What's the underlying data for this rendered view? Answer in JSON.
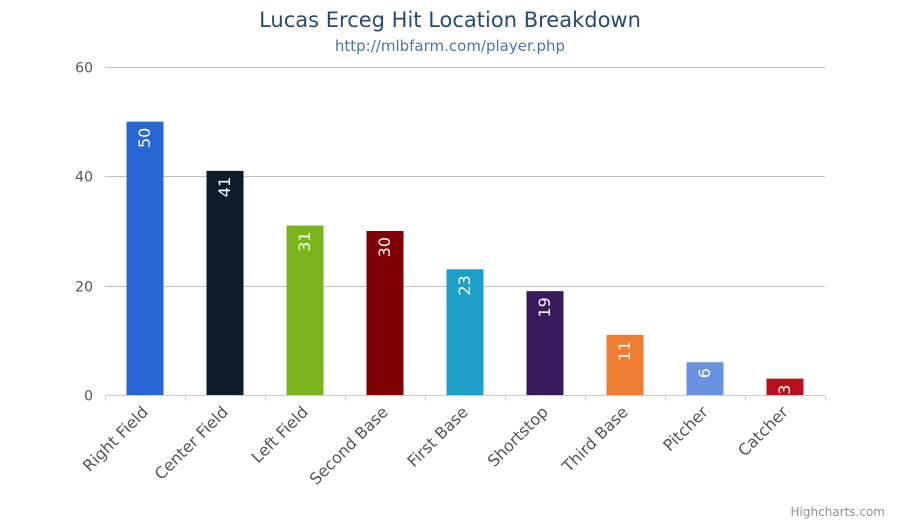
{
  "chart_data": {
    "type": "bar",
    "title": "Lucas Erceg Hit Location Breakdown",
    "subtitle": "http://mlbfarm.com/player.php",
    "xlabel": "",
    "ylabel": "",
    "ylim": [
      0,
      60
    ],
    "yticks": [
      0,
      20,
      40,
      60
    ],
    "grid": true,
    "legend": "none",
    "categories": [
      "Right Field",
      "Center Field",
      "Left Field",
      "Second Base",
      "First Base",
      "Shortstop",
      "Third Base",
      "Pitcher",
      "Catcher"
    ],
    "values": [
      50,
      41,
      31,
      30,
      23,
      19,
      11,
      6,
      3
    ],
    "colors": [
      "#2766d3",
      "#0d1a2a",
      "#7ab51d",
      "#7e0005",
      "#1e9fc7",
      "#391a5c",
      "#ee7d33",
      "#6a92e0",
      "#b8111d"
    ],
    "data_labels": true
  },
  "credits": "Highcharts.com"
}
